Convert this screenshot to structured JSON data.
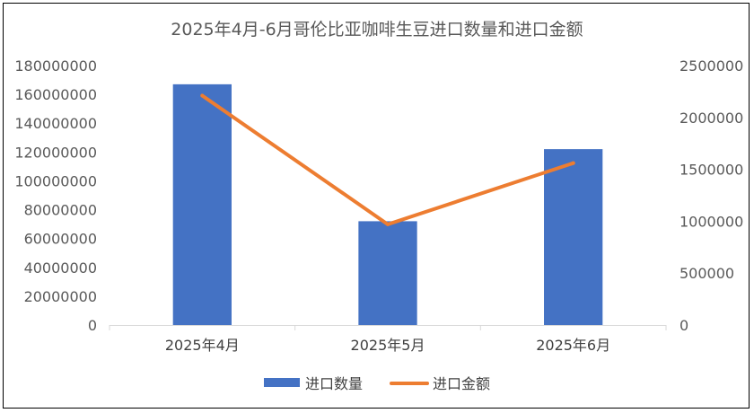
{
  "chart_data": {
    "type": "bar",
    "title": "2025年4月-6月哥伦比亚咖啡生豆进口数量和进口金额",
    "categories": [
      "2025年4月",
      "2025年5月",
      "2025年6月"
    ],
    "series": [
      {
        "name": "进口数量",
        "type": "bar",
        "axis": "left",
        "color": "#4472C4",
        "values": [
          167000000,
          72000000,
          122000000
        ]
      },
      {
        "name": "进口金额",
        "type": "line",
        "axis": "right",
        "color": "#ED7D31",
        "values": [
          2210000,
          970000,
          1560000
        ]
      }
    ],
    "ylim_left": [
      0,
      180000000
    ],
    "yticks_left": [
      "0",
      "20000000",
      "40000000",
      "60000000",
      "80000000",
      "100000000",
      "120000000",
      "140000000",
      "160000000",
      "180000000"
    ],
    "ylim_right": [
      0,
      2500000
    ],
    "yticks_right": [
      "0",
      "500000",
      "1000000",
      "1500000",
      "2000000",
      "2500000"
    ],
    "grid": false,
    "legend_position": "bottom"
  }
}
